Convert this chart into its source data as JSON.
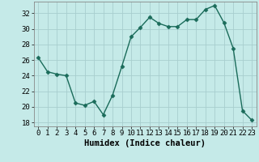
{
  "x": [
    0,
    1,
    2,
    3,
    4,
    5,
    6,
    7,
    8,
    9,
    10,
    11,
    12,
    13,
    14,
    15,
    16,
    17,
    18,
    19,
    20,
    21,
    22,
    23
  ],
  "y": [
    26.3,
    24.5,
    24.2,
    24.0,
    20.5,
    20.2,
    20.7,
    19.0,
    21.5,
    25.2,
    29.0,
    30.2,
    31.5,
    30.7,
    30.3,
    30.3,
    31.2,
    31.2,
    32.5,
    33.0,
    30.8,
    27.5,
    19.5,
    18.3
  ],
  "xlabel": "Humidex (Indice chaleur)",
  "xlim": [
    -0.5,
    23.5
  ],
  "ylim": [
    17.5,
    33.5
  ],
  "yticks": [
    18,
    20,
    22,
    24,
    26,
    28,
    30,
    32
  ],
  "xticks": [
    0,
    1,
    2,
    3,
    4,
    5,
    6,
    7,
    8,
    9,
    10,
    11,
    12,
    13,
    14,
    15,
    16,
    17,
    18,
    19,
    20,
    21,
    22,
    23
  ],
  "bg_color": "#c5eae8",
  "line_color": "#1a6b5a",
  "grid_color": "#a8cece",
  "marker": "D",
  "marker_size": 2.5,
  "line_width": 1.0,
  "tick_fontsize": 6.5,
  "xlabel_fontsize": 7.5
}
